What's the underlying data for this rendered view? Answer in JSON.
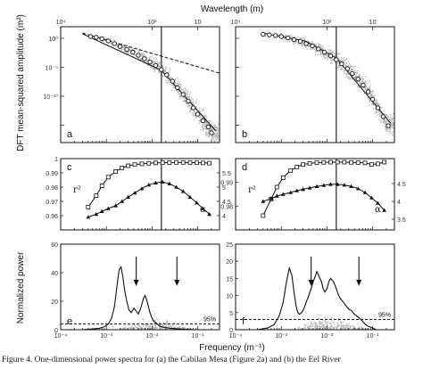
{
  "figure": {
    "top_axis_label": "Wavelength (m)",
    "bottom_axis_label": "Frequency (m⁻¹)",
    "caption": "Figure 4.  One-dimensional power spectra for (a) the Cabilan Mesa (Figure 2a) and (b) the Eel River"
  },
  "chart_data": [
    {
      "panel": "a",
      "type": "scatter",
      "log_x": true,
      "log_y": true,
      "xlim": [
        0.0001,
        0.3
      ],
      "ylim": [
        1e-18,
        100.0
      ],
      "ylabel": "DFT mean-squared amplitude (m²)",
      "top_ticks": [
        "10⁴",
        "10²",
        "10"
      ],
      "x_ticks": [
        "10⁻⁴",
        "10⁻³",
        "10⁻²",
        "10⁻¹"
      ],
      "y_ticks": [
        "10⁰",
        "10⁻⁵",
        "10⁻¹⁰"
      ],
      "vline_x": 0.016,
      "circles_x": [
        0.00045,
        0.0006,
        0.0008,
        0.0011,
        0.0015,
        0.002,
        0.0028,
        0.0038,
        0.005,
        0.0068,
        0.009,
        0.012,
        0.016,
        0.021,
        0.028,
        0.036,
        0.048,
        0.062,
        0.08,
        0.1,
        0.13,
        0.17,
        0.2
      ],
      "circles_y": [
        2,
        1.5,
        0.8,
        0.35,
        0.12,
        0.04,
        0.012,
        0.004,
        0.0012,
        0.0003,
        8e-05,
        2e-05,
        4e-06,
        5e-07,
        4e-08,
        3e-09,
        2e-10,
        1.5e-11,
        1e-12,
        8e-14,
        6e-15,
        5e-16,
        5e-17
      ],
      "dashed_fit": {
        "x": [
          0.0003,
          0.3
        ],
        "y": [
          8,
          1e-06
        ]
      },
      "solid_fit": {
        "x": [
          0.0003,
          0.016,
          0.25
        ],
        "y": [
          6,
          3e-06,
          1e-16
        ]
      }
    },
    {
      "panel": "b",
      "type": "scatter",
      "log_x": true,
      "log_y": true,
      "xlim": [
        0.0001,
        0.3
      ],
      "ylim": [
        1e-18,
        100.0
      ],
      "top_ticks": [
        "10⁴",
        "10²",
        "10"
      ],
      "x_ticks": [
        "10⁻⁴",
        "10⁻³",
        "10⁻²",
        "10⁻¹"
      ],
      "vline_x": 0.016,
      "circles_x": [
        0.0004,
        0.00055,
        0.00075,
        0.001,
        0.0014,
        0.0019,
        0.0026,
        0.0035,
        0.0048,
        0.0065,
        0.0088,
        0.012,
        0.016,
        0.021,
        0.028,
        0.036,
        0.048,
        0.062,
        0.08,
        0.1,
        0.13,
        0.17,
        0.22
      ],
      "circles_y": [
        5,
        4,
        3,
        2,
        1.2,
        0.6,
        0.3,
        0.12,
        0.05,
        0.015,
        0.004,
        0.0009,
        0.0002,
        4e-05,
        6e-06,
        8e-07,
        9e-08,
        8e-09,
        6e-10,
        3e-11,
        1e-12,
        3e-14,
        8e-16
      ],
      "solid_fit": {
        "x": [
          0.0004,
          0.0035,
          0.016,
          0.25
        ],
        "y": [
          8,
          0.3,
          0.0004,
          2e-15
        ]
      }
    },
    {
      "panel": "c",
      "type": "line",
      "log_x": true,
      "xlim": [
        0.0001,
        0.3
      ],
      "left_ylim": [
        0.95,
        1.0
      ],
      "left_ticks": [
        "1",
        "0.99",
        "0.98",
        "0.97",
        "0.96"
      ],
      "right_ylim": [
        3.5,
        6.0
      ],
      "right_ticks": [
        "5.5",
        "5",
        "4.5",
        "4"
      ],
      "left_label": "r²",
      "right_label": "α",
      "vline_x": 0.016,
      "r2": {
        "x": [
          0.0004,
          0.0006,
          0.0008,
          0.0011,
          0.0016,
          0.0022,
          0.003,
          0.0042,
          0.006,
          0.0085,
          0.012,
          0.017,
          0.024,
          0.034,
          0.048,
          0.068,
          0.095,
          0.13,
          0.18
        ],
        "y": [
          0.966,
          0.974,
          0.981,
          0.987,
          0.991,
          0.9935,
          0.995,
          0.9958,
          0.9963,
          0.9967,
          0.997,
          0.9971,
          0.9972,
          0.9973,
          0.9973,
          0.9972,
          0.9971,
          0.997,
          0.9968
        ]
      },
      "alpha": {
        "x": [
          0.0004,
          0.0006,
          0.0008,
          0.0011,
          0.0016,
          0.0022,
          0.003,
          0.0042,
          0.006,
          0.0085,
          0.012,
          0.017,
          0.024,
          0.034,
          0.048,
          0.068,
          0.095,
          0.13,
          0.18
        ],
        "y": [
          3.95,
          4.05,
          4.15,
          4.25,
          4.35,
          4.5,
          4.65,
          4.8,
          4.95,
          5.08,
          5.15,
          5.18,
          5.12,
          5.0,
          4.85,
          4.65,
          4.45,
          4.25,
          4.05
        ]
      }
    },
    {
      "panel": "d",
      "type": "line",
      "log_x": true,
      "xlim": [
        0.0001,
        0.3
      ],
      "left_ylim": [
        0.97,
        1.0
      ],
      "left_ticks": [
        "0.99",
        "0.98"
      ],
      "right_ylim": [
        3.2,
        5.2
      ],
      "right_ticks": [
        "4.5",
        "4",
        "3.5"
      ],
      "left_label": "r²",
      "right_label": "α",
      "vline_x": 0.016,
      "r2": {
        "x": [
          0.0004,
          0.0006,
          0.0008,
          0.0011,
          0.0016,
          0.0022,
          0.003,
          0.0042,
          0.006,
          0.0085,
          0.012,
          0.017,
          0.024,
          0.034,
          0.048,
          0.068,
          0.095,
          0.13,
          0.18
        ],
        "y": [
          0.976,
          0.983,
          0.988,
          0.992,
          0.995,
          0.9965,
          0.9975,
          0.998,
          0.9983,
          0.9984,
          0.9985,
          0.9985,
          0.9985,
          0.9984,
          0.9983,
          0.9982,
          0.9975,
          0.9978,
          0.9985
        ]
      },
      "alpha": {
        "x": [
          0.0004,
          0.0006,
          0.0008,
          0.0011,
          0.0016,
          0.0022,
          0.003,
          0.0042,
          0.006,
          0.0085,
          0.012,
          0.017,
          0.024,
          0.034,
          0.048,
          0.068,
          0.095,
          0.13,
          0.18
        ],
        "y": [
          4.0,
          4.08,
          4.15,
          4.2,
          4.25,
          4.3,
          4.34,
          4.38,
          4.42,
          4.45,
          4.48,
          4.48,
          4.46,
          4.42,
          4.36,
          4.25,
          4.1,
          3.95,
          3.75
        ]
      }
    },
    {
      "panel": "e",
      "type": "line",
      "log_x": true,
      "xlim": [
        0.0001,
        0.3
      ],
      "ylim": [
        0,
        60
      ],
      "ylabel": "Normalized power",
      "y_ticks": [
        0,
        20,
        40,
        60
      ],
      "x_ticks": [
        "10⁻⁴",
        "10⁻³",
        "10⁻²",
        "10⁻¹"
      ],
      "vline_x": 0.016,
      "threshold": {
        "y": 4,
        "label": "95%"
      },
      "arrows_x": [
        0.0045,
        0.035
      ],
      "x": [
        0.0003,
        0.0005,
        0.0007,
        0.0009,
        0.0011,
        0.0013,
        0.0015,
        0.0017,
        0.0019,
        0.0021,
        0.0023,
        0.0025,
        0.0028,
        0.0031,
        0.0035,
        0.004,
        0.0045,
        0.005,
        0.0055,
        0.006,
        0.0065,
        0.007,
        0.0076,
        0.0082,
        0.009,
        0.01,
        0.011,
        0.012,
        0.014,
        0.016,
        0.02,
        0.025,
        0.03,
        0.04,
        0.05,
        0.06,
        0.08
      ],
      "y": [
        0,
        0.5,
        1,
        2,
        4,
        8,
        16,
        30,
        42,
        44,
        37,
        28,
        20,
        14,
        12,
        15,
        13,
        11,
        14,
        18,
        22,
        24,
        21,
        17,
        12,
        8,
        6,
        5,
        3,
        2,
        1.5,
        1,
        0.8,
        0.5,
        0.3,
        0.2,
        0
      ]
    },
    {
      "panel": "f",
      "type": "line",
      "log_x": true,
      "xlim": [
        0.0001,
        0.3
      ],
      "ylim": [
        0,
        25
      ],
      "y_ticks": [
        0,
        5,
        10,
        15,
        20,
        25
      ],
      "x_ticks": [
        "10⁻⁴",
        "10⁻³",
        "10⁻²",
        "10⁻¹"
      ],
      "vline_x": 0.016,
      "threshold": {
        "y": 3,
        "label": "95%"
      },
      "arrows_x": [
        0.0045,
        0.05
      ],
      "x": [
        0.0003,
        0.0005,
        0.0007,
        0.0009,
        0.0011,
        0.0013,
        0.0015,
        0.0017,
        0.0019,
        0.0021,
        0.0023,
        0.0025,
        0.0028,
        0.0031,
        0.0035,
        0.004,
        0.0045,
        0.005,
        0.0055,
        0.006,
        0.0065,
        0.007,
        0.0076,
        0.0082,
        0.009,
        0.01,
        0.011,
        0.012,
        0.014,
        0.016,
        0.018,
        0.02,
        0.023,
        0.026,
        0.03,
        0.035,
        0.04,
        0.05,
        0.06,
        0.07,
        0.08,
        0.1,
        0.12
      ],
      "y": [
        0,
        0.5,
        1.5,
        4,
        8,
        14,
        18,
        16,
        11,
        7,
        5,
        4.5,
        5,
        6,
        8,
        10,
        12,
        14,
        15.5,
        17,
        16,
        15,
        14,
        12,
        11,
        12,
        14,
        15,
        14,
        12,
        10,
        9,
        8,
        7,
        6,
        5.5,
        4.5,
        3.5,
        2.5,
        1.5,
        1,
        0.5,
        0
      ]
    }
  ]
}
